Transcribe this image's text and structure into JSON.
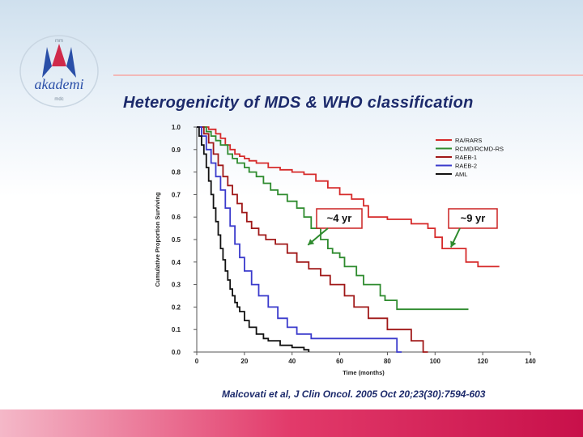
{
  "logo": {
    "top_text": "mm",
    "wordmark": "akademi",
    "sub_text": "mdc"
  },
  "slide": {
    "title": "Heterogenicity of MDS & WHO classification",
    "citation": "Malcovati et al, J Clin Oncol. 2005 Oct 20;23(30):7594-603"
  },
  "colors": {
    "title": "#1c2a6b",
    "footer": "#e23a6a",
    "callout": "#cc2222"
  },
  "chart_data": {
    "type": "line",
    "title": "",
    "xlabel": "Time (months)",
    "ylabel": "Cumulative Proportion Surviving",
    "xlim": [
      0,
      140
    ],
    "ylim": [
      0.0,
      1.0
    ],
    "xticks": [
      0,
      20,
      40,
      60,
      80,
      100,
      120,
      140
    ],
    "yticks": [
      0.0,
      0.1,
      0.2,
      0.3,
      0.4,
      0.5,
      0.6,
      0.7,
      0.8,
      0.9,
      1.0
    ],
    "xtick_labels": [
      "0",
      "20",
      "40",
      "60",
      "80",
      "100",
      "120",
      "140"
    ],
    "ytick_labels": [
      "0.0",
      "0.1",
      "0.2",
      "0.3",
      "0.4",
      "0.5",
      "0.6",
      "0.7",
      "0.8",
      "0.9",
      "1.0"
    ],
    "legend_position": "top-right",
    "series": [
      {
        "name": "RA/RARS",
        "color": "#d62a2a",
        "x": [
          0,
          5,
          8,
          10,
          12,
          14,
          16,
          18,
          20,
          22,
          25,
          30,
          35,
          40,
          45,
          50,
          55,
          60,
          65,
          70,
          72,
          80,
          90,
          97,
          100,
          103,
          113,
          118,
          127
        ],
        "y": [
          1.0,
          0.99,
          0.97,
          0.95,
          0.92,
          0.9,
          0.88,
          0.87,
          0.86,
          0.85,
          0.84,
          0.82,
          0.81,
          0.8,
          0.79,
          0.76,
          0.73,
          0.7,
          0.68,
          0.65,
          0.6,
          0.59,
          0.57,
          0.55,
          0.51,
          0.46,
          0.4,
          0.38,
          0.38
        ]
      },
      {
        "name": "RCMD/RCMD-RS",
        "color": "#2e8b2e",
        "x": [
          0,
          4,
          6,
          8,
          10,
          13,
          15,
          17,
          20,
          22,
          25,
          28,
          31,
          34,
          38,
          42,
          45,
          48,
          52,
          55,
          57,
          60,
          62,
          67,
          70,
          77,
          79,
          84,
          94,
          114
        ],
        "y": [
          1.0,
          0.98,
          0.96,
          0.94,
          0.92,
          0.88,
          0.86,
          0.84,
          0.82,
          0.8,
          0.78,
          0.75,
          0.72,
          0.7,
          0.67,
          0.64,
          0.6,
          0.55,
          0.5,
          0.46,
          0.44,
          0.42,
          0.38,
          0.34,
          0.3,
          0.25,
          0.23,
          0.19,
          0.19,
          0.19
        ]
      },
      {
        "name": "RAEB-1",
        "color": "#a01818",
        "x": [
          0,
          3,
          5,
          7,
          9,
          11,
          13,
          15,
          17,
          19,
          21,
          23,
          26,
          29,
          33,
          38,
          42,
          47,
          52,
          56,
          62,
          66,
          72,
          80,
          90,
          95,
          97
        ],
        "y": [
          1.0,
          0.97,
          0.93,
          0.88,
          0.83,
          0.78,
          0.74,
          0.7,
          0.66,
          0.62,
          0.58,
          0.55,
          0.52,
          0.5,
          0.48,
          0.44,
          0.4,
          0.37,
          0.34,
          0.3,
          0.25,
          0.2,
          0.15,
          0.1,
          0.05,
          0.0,
          0.0
        ]
      },
      {
        "name": "RAEB-2",
        "color": "#3a3acc",
        "x": [
          0,
          2,
          4,
          6,
          8,
          10,
          12,
          14,
          16,
          18,
          20,
          23,
          26,
          30,
          34,
          38,
          42,
          48,
          55,
          62,
          75,
          84,
          86
        ],
        "y": [
          1.0,
          0.96,
          0.9,
          0.84,
          0.78,
          0.72,
          0.64,
          0.56,
          0.48,
          0.42,
          0.36,
          0.3,
          0.25,
          0.2,
          0.15,
          0.11,
          0.08,
          0.06,
          0.06,
          0.06,
          0.06,
          0.0,
          0.0
        ]
      },
      {
        "name": "AML",
        "color": "#111111",
        "x": [
          0,
          1,
          2,
          3,
          4,
          5,
          6,
          7,
          8,
          9,
          10,
          11,
          12,
          13,
          14,
          15,
          16,
          17,
          18,
          20,
          22,
          25,
          28,
          30,
          35,
          40,
          45,
          47
        ],
        "y": [
          1.0,
          0.96,
          0.92,
          0.88,
          0.82,
          0.76,
          0.7,
          0.64,
          0.58,
          0.52,
          0.46,
          0.41,
          0.36,
          0.32,
          0.28,
          0.25,
          0.22,
          0.2,
          0.18,
          0.14,
          0.11,
          0.08,
          0.06,
          0.05,
          0.03,
          0.02,
          0.01,
          0.0
        ]
      }
    ],
    "annotations": [
      {
        "text": "~4 yr",
        "points_to": {
          "x": 48,
          "y": 0.49
        }
      },
      {
        "text": "~9 yr",
        "points_to": {
          "x": 108,
          "y": 0.48
        }
      }
    ]
  }
}
